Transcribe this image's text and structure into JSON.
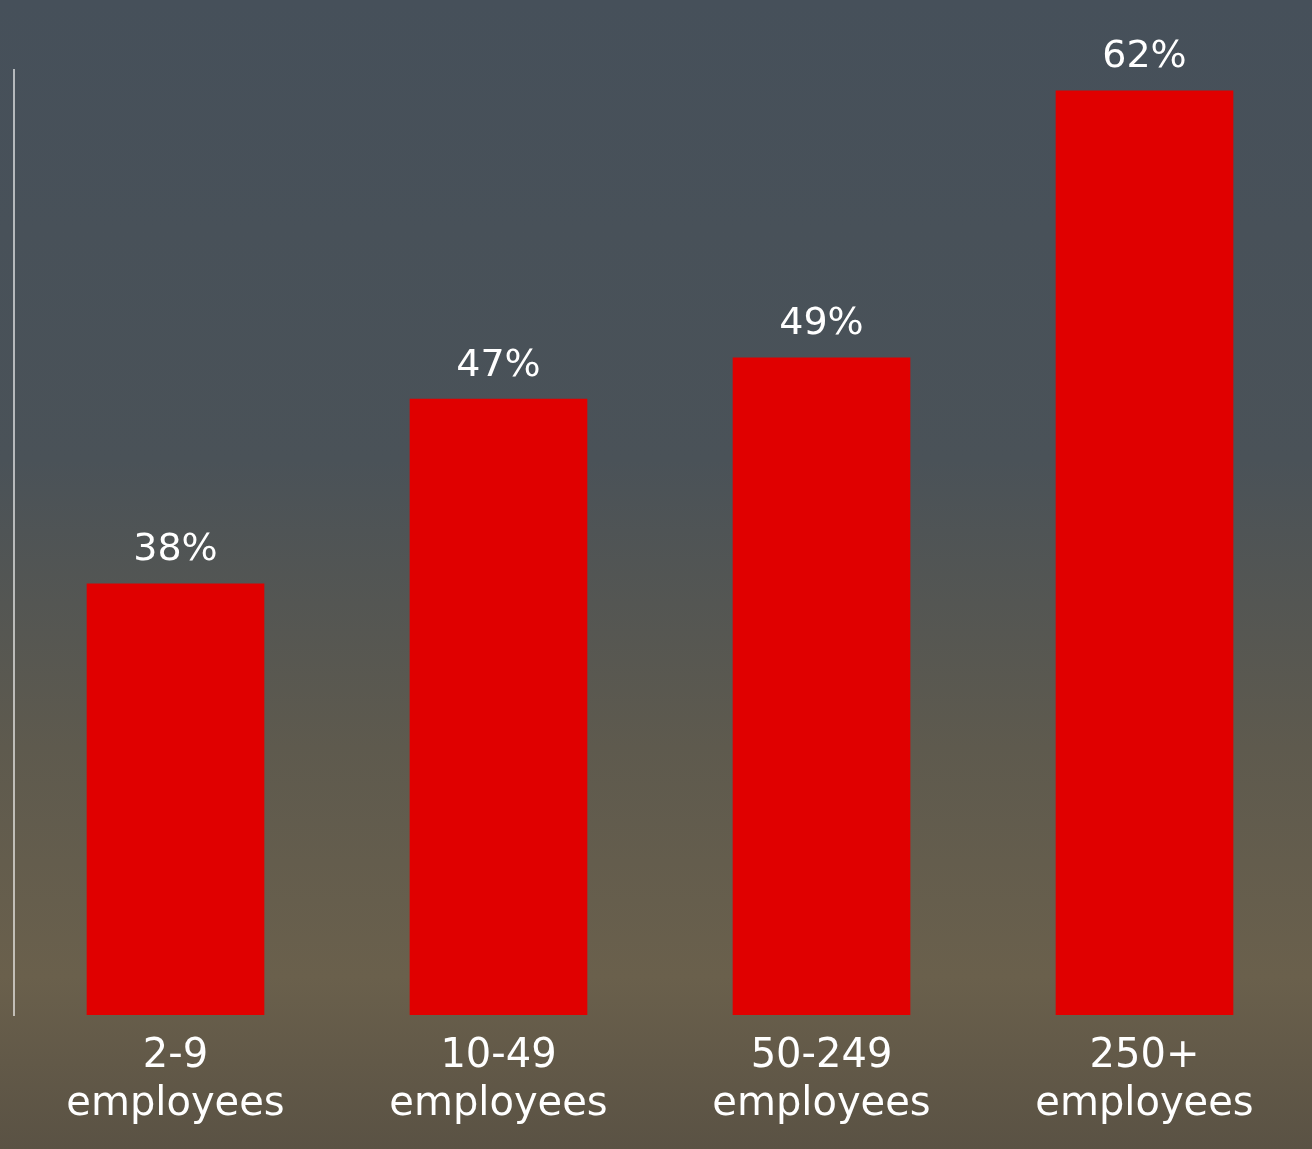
{
  "chart_data": {
    "type": "bar",
    "categories": [
      "2-9 employees",
      "10-49 employees",
      "50-249 employees",
      "250+ employees"
    ],
    "values": [
      38,
      47,
      49,
      62
    ],
    "value_labels": [
      "38%",
      "47%",
      "49%",
      "62%"
    ],
    "data_labels": true,
    "color": "#e00000",
    "ylim": [
      17,
      63
    ],
    "grid": false,
    "tick_labels": "x"
  }
}
